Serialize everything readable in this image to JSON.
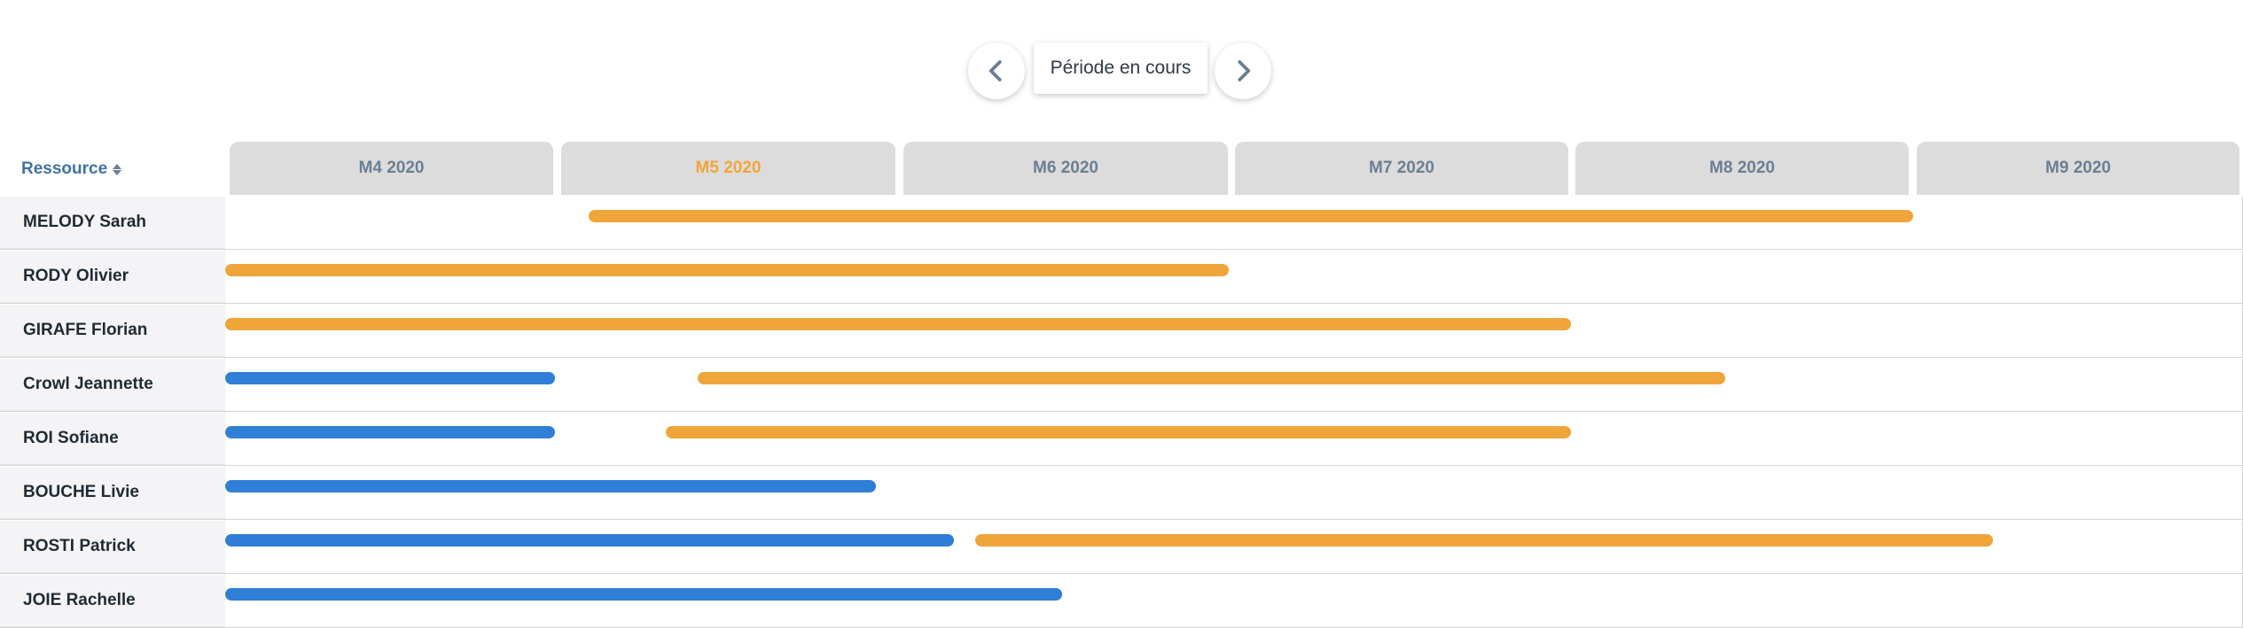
{
  "navigation": {
    "prev_icon": "chevron-left-icon",
    "next_icon": "chevron-right-icon",
    "current_period_label": "Période en cours"
  },
  "header": {
    "resource_label": "Ressource",
    "sort_icon": "sort-icon"
  },
  "months": [
    {
      "label": "M4 2020",
      "current": false
    },
    {
      "label": "M5 2020",
      "current": true
    },
    {
      "label": "M6 2020",
      "current": false
    },
    {
      "label": "M7 2020",
      "current": false
    },
    {
      "label": "M8 2020",
      "current": false
    },
    {
      "label": "M9 2020",
      "current": false
    }
  ],
  "colors": {
    "orange": "#f0a53a",
    "blue": "#2f7ed8",
    "header_text": "#6b7f93",
    "resource_header": "#3f72a5"
  },
  "resources": [
    {
      "name": "MELODY Sarah"
    },
    {
      "name": "RODY Olivier"
    },
    {
      "name": "GIRAFE Florian"
    },
    {
      "name": "Crowl Jeannette"
    },
    {
      "name": "ROI Sofiane"
    },
    {
      "name": "BOUCHE Livie"
    },
    {
      "name": "ROSTI Patrick"
    },
    {
      "name": "JOIE Rachelle"
    }
  ]
}
